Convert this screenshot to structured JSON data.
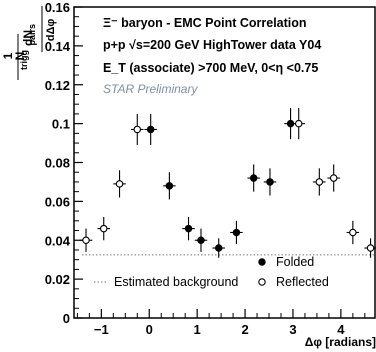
{
  "chart_data": {
    "type": "scatter",
    "title_lines": [
      "Ξ⁻ baryon - EMC Point Correlation",
      "p+p √s=200 GeV HighTower data Y04",
      "E_T (associate) >700 MeV, 0<η <0.75"
    ],
    "preliminary": "STAR Preliminary",
    "xlabel": "Δφ [radians]",
    "ylabel_num": "dN_pairs / dΔφ",
    "ylabel_den": "1 / N_trigg",
    "xlim": [
      -1.5708,
      4.7124
    ],
    "ylim": [
      0,
      0.16
    ],
    "x_ticks": [
      -1,
      0,
      1,
      2,
      3,
      4
    ],
    "y_ticks": [
      0,
      0.02,
      0.04,
      0.06,
      0.08,
      0.1,
      0.12,
      0.14,
      0.16
    ],
    "y_tick_labels": [
      "0",
      "0.02",
      "0.04",
      "0.06",
      "0.08",
      "0.1",
      "0.12",
      "0.14",
      "0.16"
    ],
    "background_level": 0.0325,
    "bin_half_width": 0.13,
    "series": [
      {
        "name": "Folded",
        "marker": "filled-circle",
        "points": [
          {
            "x": 0.03,
            "y": 0.097,
            "err": 0.008
          },
          {
            "x": 0.42,
            "y": 0.068,
            "err": 0.007
          },
          {
            "x": 0.82,
            "y": 0.046,
            "err": 0.006
          },
          {
            "x": 1.08,
            "y": 0.04,
            "err": 0.006
          },
          {
            "x": 1.45,
            "y": 0.036,
            "err": 0.005
          },
          {
            "x": 1.82,
            "y": 0.044,
            "err": 0.006
          },
          {
            "x": 2.18,
            "y": 0.072,
            "err": 0.007
          },
          {
            "x": 2.52,
            "y": 0.07,
            "err": 0.007
          },
          {
            "x": 2.95,
            "y": 0.1,
            "err": 0.008
          }
        ]
      },
      {
        "name": "Reflected",
        "marker": "open-circle",
        "points": [
          {
            "x": -1.32,
            "y": 0.04,
            "err": 0.006
          },
          {
            "x": -0.95,
            "y": 0.046,
            "err": 0.006
          },
          {
            "x": -0.62,
            "y": 0.069,
            "err": 0.007
          },
          {
            "x": -0.25,
            "y": 0.097,
            "err": 0.008
          },
          {
            "x": 3.12,
            "y": 0.1,
            "err": 0.008
          },
          {
            "x": 3.55,
            "y": 0.07,
            "err": 0.007
          },
          {
            "x": 3.85,
            "y": 0.072,
            "err": 0.007
          },
          {
            "x": 4.25,
            "y": 0.044,
            "err": 0.006
          },
          {
            "x": 4.62,
            "y": 0.036,
            "err": 0.005
          }
        ]
      }
    ],
    "legend": [
      {
        "label": "Folded",
        "marker": "filled-circle"
      },
      {
        "label": "Estimated background",
        "marker": "dotted-line"
      },
      {
        "label": "Reflected",
        "marker": "open-circle"
      }
    ],
    "legend_placement": "bottom-right"
  }
}
